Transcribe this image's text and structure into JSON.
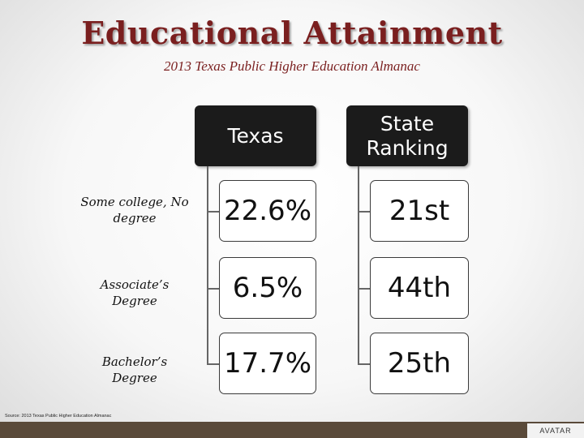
{
  "title": "Educational Attainment",
  "subtitle": "2013 Texas Public Higher Education Almanac",
  "columns": [
    "Texas",
    "State Ranking"
  ],
  "rows": [
    {
      "label": "Some college, No degree",
      "texas": "22.6%",
      "ranking": "21st"
    },
    {
      "label": "Associate’s Degree",
      "texas": "6.5%",
      "ranking": "44th"
    },
    {
      "label": "Bachelor’s Degree",
      "texas": "17.7%",
      "ranking": "25th"
    }
  ],
  "source": "Source: 2013 Texas Public Higher Education Almanac",
  "logo_text": "AVATAR",
  "colors": {
    "title": "#7a1f1f",
    "header_bg": "#1b1b1b",
    "footer": "#5a4a3a"
  }
}
